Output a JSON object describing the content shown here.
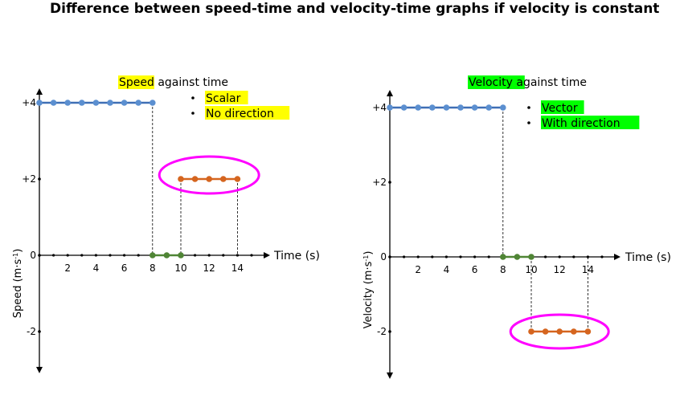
{
  "page_title": "Difference between speed-time and velocity-time graphs if velocity is constant",
  "colors": {
    "blue": "#5b8fd0",
    "blue_line": "#3f6fb5",
    "orange": "#d5651f",
    "green": "#4f8535",
    "highlight_yellow": "#ffff00",
    "highlight_green": "#00ff00",
    "oval": "#ff00ff"
  },
  "chart_data": [
    {
      "type": "line",
      "title": {
        "highlight": "Speed",
        "rest": " against time"
      },
      "xlabel": "Time (s)",
      "ylabel_main": "Speed (m·s",
      "ylabel_sup": "-1",
      "ylabel_end": ")",
      "xlim": [
        0,
        15
      ],
      "ylim": [
        -3,
        4.5
      ],
      "x_ticks": [
        2,
        4,
        6,
        8,
        10,
        12,
        14
      ],
      "y_ticks": [
        {
          "value": 4,
          "label": "+4"
        },
        {
          "value": 2,
          "label": "+2"
        },
        {
          "value": 0,
          "label": "0"
        },
        {
          "value": -2,
          "label": "-2"
        }
      ],
      "bullets_highlight": "highlight_yellow",
      "bullets": [
        "Scalar",
        "No direction"
      ],
      "series": [
        {
          "color": "blue",
          "x": [
            0,
            1,
            2,
            3,
            4,
            5,
            6,
            7,
            8
          ],
          "y": [
            4,
            4,
            4,
            4,
            4,
            4,
            4,
            4,
            4
          ]
        },
        {
          "color": "green",
          "x": [
            8,
            9,
            10
          ],
          "y": [
            0,
            0,
            0
          ]
        },
        {
          "color": "orange",
          "x": [
            10,
            11,
            12,
            13,
            14
          ],
          "y": [
            2,
            2,
            2,
            2,
            2
          ]
        }
      ],
      "dashed_guides": [
        8,
        10,
        14
      ],
      "circled_series": 2
    },
    {
      "type": "line",
      "title": {
        "highlight": "Velocity",
        "rest": " against time"
      },
      "xlabel": "Time (s)",
      "ylabel_main": "Velocity (m·s",
      "ylabel_sup": "-1",
      "ylabel_end": ")",
      "xlim": [
        0,
        15
      ],
      "ylim": [
        -3,
        4.5
      ],
      "x_ticks": [
        2,
        4,
        6,
        8,
        10,
        12,
        14
      ],
      "y_ticks": [
        {
          "value": 4,
          "label": "+4"
        },
        {
          "value": 2,
          "label": "+2"
        },
        {
          "value": 0,
          "label": "0"
        },
        {
          "value": -2,
          "label": "-2"
        }
      ],
      "bullets_highlight": "highlight_green",
      "bullets": [
        "Vector",
        "With direction"
      ],
      "series": [
        {
          "color": "blue",
          "x": [
            0,
            1,
            2,
            3,
            4,
            5,
            6,
            7,
            8
          ],
          "y": [
            4,
            4,
            4,
            4,
            4,
            4,
            4,
            4,
            4
          ]
        },
        {
          "color": "green",
          "x": [
            8,
            9,
            10
          ],
          "y": [
            0,
            0,
            0
          ]
        },
        {
          "color": "orange",
          "x": [
            10,
            11,
            12,
            13,
            14
          ],
          "y": [
            -2,
            -2,
            -2,
            -2,
            -2
          ]
        }
      ],
      "dashed_guides": [
        8,
        10,
        14
      ],
      "circled_series": 2
    }
  ]
}
